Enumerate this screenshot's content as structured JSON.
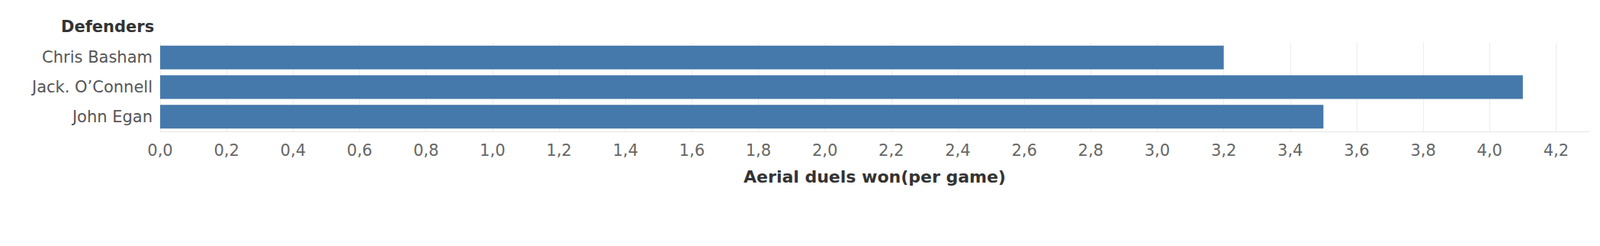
{
  "chart_data": {
    "type": "bar",
    "orientation": "horizontal",
    "xlabel": "Aerial duels won(per game)",
    "ylabel": "Defenders",
    "categories": [
      "Chris Basham",
      "Jack. O’Connell",
      "John Egan"
    ],
    "values": [
      3.2,
      4.1,
      3.5
    ],
    "color": "#4579ab",
    "xlim": [
      0,
      4.3
    ],
    "xticks": [
      {
        "value": 0,
        "label": "0,0"
      },
      {
        "value": 0.2,
        "label": "0,2"
      },
      {
        "value": 0.4,
        "label": "0,4"
      },
      {
        "value": 0.6,
        "label": "0,6"
      },
      {
        "value": 0.8,
        "label": "0,8"
      },
      {
        "value": 1.0,
        "label": "1,0"
      },
      {
        "value": 1.2,
        "label": "1,2"
      },
      {
        "value": 1.4,
        "label": "1,4"
      },
      {
        "value": 1.6,
        "label": "1,6"
      },
      {
        "value": 1.8,
        "label": "1,8"
      },
      {
        "value": 2.0,
        "label": "2,0"
      },
      {
        "value": 2.2,
        "label": "2,2"
      },
      {
        "value": 2.4,
        "label": "2,4"
      },
      {
        "value": 2.6,
        "label": "2,6"
      },
      {
        "value": 2.8,
        "label": "2,8"
      },
      {
        "value": 3.0,
        "label": "3,0"
      },
      {
        "value": 3.2,
        "label": "3,2"
      },
      {
        "value": 3.4,
        "label": "3,4"
      },
      {
        "value": 3.6,
        "label": "3,6"
      },
      {
        "value": 3.8,
        "label": "3,8"
      },
      {
        "value": 4.0,
        "label": "4,0"
      },
      {
        "value": 4.2,
        "label": "4,2"
      }
    ],
    "grid": true
  }
}
